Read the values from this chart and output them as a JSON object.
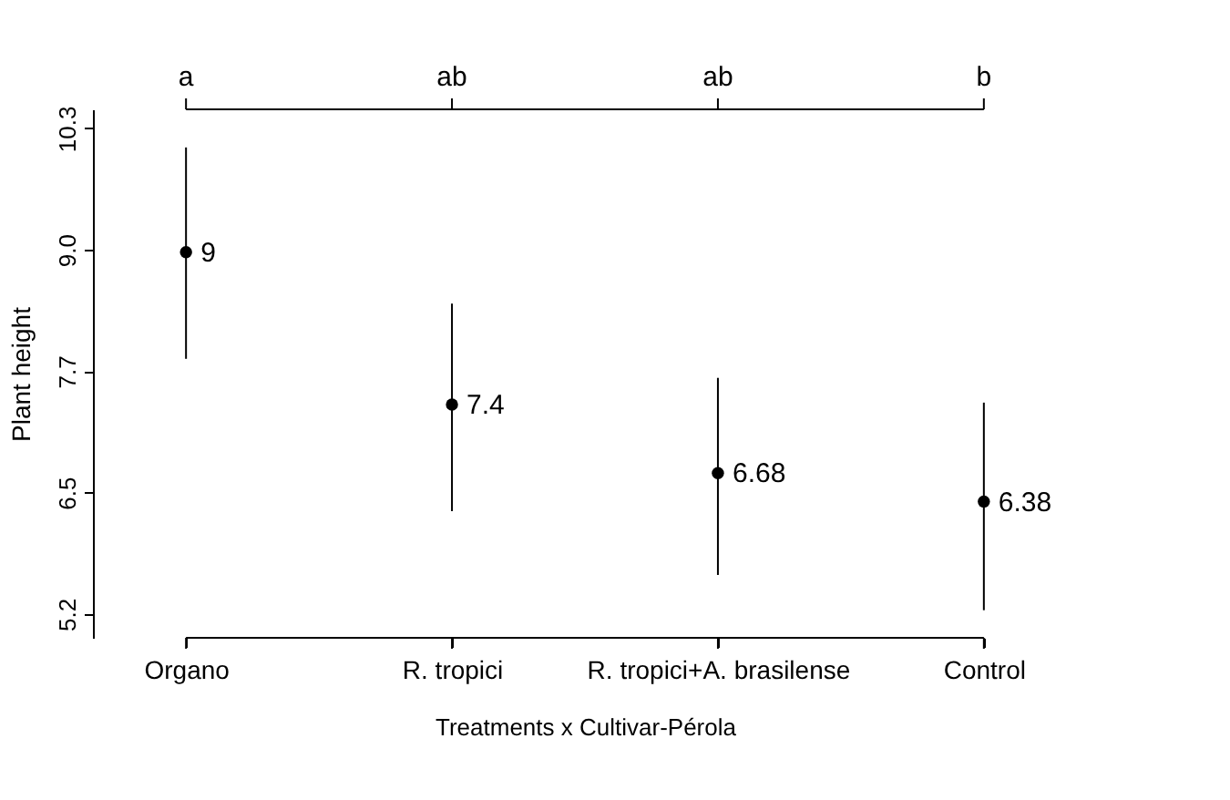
{
  "chart_data": {
    "type": "scatter",
    "xlabel": "Treatments x Cultivar-Pérola",
    "ylabel": "Plant height",
    "categories": [
      "Organo",
      "R. tropici",
      "R. tropici+A. brasilense",
      "Control"
    ],
    "values": [
      9,
      7.4,
      6.68,
      6.38
    ],
    "errors": [
      [
        7.88,
        10.1
      ],
      [
        6.28,
        8.46
      ],
      [
        5.61,
        7.68
      ],
      [
        5.24,
        7.42
      ]
    ],
    "color": "#000000",
    "marker": "circle",
    "data_labels": true,
    "grid": false,
    "ylim": [
      4.95,
      10.5
    ],
    "yticks": [
      {
        "value": 5.2,
        "label": "5.2"
      },
      {
        "value": 6.475,
        "label": "6.5"
      },
      {
        "value": 7.75,
        "label": "7.7"
      },
      {
        "value": 9.025,
        "label": "9.0"
      },
      {
        "value": 10.3,
        "label": "10.3"
      }
    ],
    "annotations": [
      {
        "text": "a",
        "x": "Organo"
      },
      {
        "text": "ab",
        "x": "R. tropici"
      },
      {
        "text": "ab",
        "x": "R. tropici+A. brasilense"
      },
      {
        "text": "b",
        "x": "Control"
      }
    ]
  }
}
